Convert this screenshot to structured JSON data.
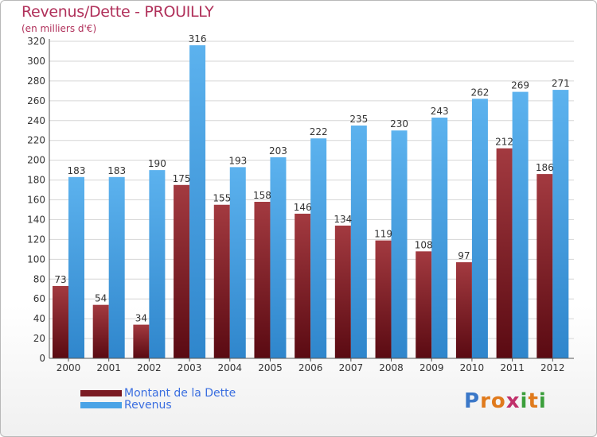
{
  "header": {
    "title": "Revenus/Dette - PROUILLY",
    "subtitle": "(en milliers d'€)"
  },
  "legend": {
    "items": [
      {
        "label": "Montant de la Dette",
        "color": "#7a1a22"
      },
      {
        "label": "Revenus",
        "color": "#4aa3e6"
      }
    ]
  },
  "logo": {
    "text": "Proxiti",
    "letters": [
      {
        "ch": "P",
        "color": "#3b78c8"
      },
      {
        "ch": "r",
        "color": "#e07a1c"
      },
      {
        "ch": "o",
        "color": "#e07a1c"
      },
      {
        "ch": "x",
        "color": "#c0306a"
      },
      {
        "ch": "i",
        "color": "#3b9f3b"
      },
      {
        "ch": "t",
        "color": "#e07a1c"
      },
      {
        "ch": "i",
        "color": "#3b9f3b"
      }
    ]
  },
  "chart_data": {
    "type": "bar",
    "title": "Revenus/Dette - PROUILLY",
    "subtitle": "(en milliers d'€)",
    "categories": [
      "2000",
      "2001",
      "2002",
      "2003",
      "2004",
      "2005",
      "2006",
      "2007",
      "2008",
      "2009",
      "2010",
      "2011",
      "2012"
    ],
    "series": [
      {
        "name": "Montant de la Dette",
        "color": "#7a1a22",
        "values": [
          73,
          54,
          34,
          175,
          155,
          158,
          146,
          134,
          119,
          108,
          97,
          212,
          186
        ]
      },
      {
        "name": "Revenus",
        "color": "#4aa3e6",
        "values": [
          183,
          183,
          190,
          316,
          193,
          203,
          222,
          235,
          230,
          243,
          262,
          269,
          271
        ]
      }
    ],
    "ylim": [
      0,
      320
    ],
    "yticks": [
      0,
      20,
      40,
      60,
      80,
      100,
      120,
      140,
      160,
      180,
      200,
      220,
      240,
      260,
      280,
      300,
      320
    ],
    "grid": true,
    "legend_position": "bottom-left"
  }
}
